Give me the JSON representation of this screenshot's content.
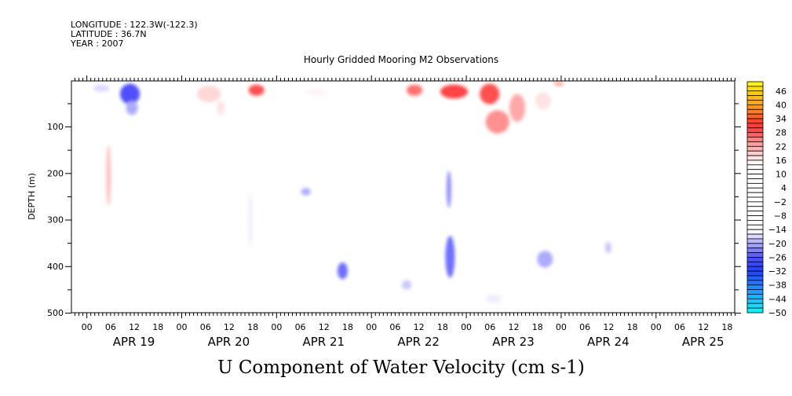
{
  "header": {
    "longitude": "LONGITUDE : 122.3W(-122.3)",
    "latitude": "LATITUDE : 36.7N",
    "year": "YEAR : 2007"
  },
  "chart_data": {
    "type": "heatmap",
    "title": "Hourly Gridded Mooring M2 Observations",
    "xlabel": "U Component of Water Velocity (cm s-1)",
    "ylabel": "DEPTH (m)",
    "x_units": "hours since APR 19 00:00",
    "xlim": [
      -3.8,
      164
    ],
    "ylim": [
      2,
      500
    ],
    "y_inverted": true,
    "yticks": [
      100,
      200,
      300,
      400,
      500
    ],
    "yticks_labeled": [
      "100",
      "200",
      "300",
      "400",
      "500"
    ],
    "xtick_hour_labels": [
      "00",
      "06",
      "12",
      "18"
    ],
    "day_labels": [
      "APR 19",
      "APR 20",
      "APR 21",
      "APR 22",
      "APR 23",
      "APR 24",
      "APR 25"
    ],
    "colorbar": {
      "min": -50,
      "max": 50,
      "step": 2,
      "labels": [
        "46",
        "40",
        "34",
        "28",
        "22",
        "16",
        "10",
        "4",
        "-2",
        "-8",
        "-14",
        "-20",
        "-26",
        "-32",
        "-38",
        "-44",
        "-50"
      ],
      "stops": [
        [
          -50,
          "#00ffff"
        ],
        [
          -44,
          "#10c0ff"
        ],
        [
          -38,
          "#2080ff"
        ],
        [
          -32,
          "#2040ff"
        ],
        [
          -26,
          "#5050ff"
        ],
        [
          -22,
          "#9090ff"
        ],
        [
          -18,
          "#c8c8ff"
        ],
        [
          -16,
          "#eeeeff"
        ],
        [
          -14,
          "#ffffff"
        ],
        [
          14,
          "#ffffff"
        ],
        [
          16,
          "#ffeeee"
        ],
        [
          20,
          "#ffc0c0"
        ],
        [
          24,
          "#ff9090"
        ],
        [
          28,
          "#ff5050"
        ],
        [
          32,
          "#ff3535"
        ],
        [
          36,
          "#ff7020"
        ],
        [
          40,
          "#ffa020"
        ],
        [
          44,
          "#ffc010"
        ],
        [
          50,
          "#ffff00"
        ]
      ]
    },
    "patches": [
      {
        "t": 3.8,
        "depth": 18,
        "dt": 2,
        "dd": 8,
        "value": -17
      },
      {
        "t": 11,
        "depth": 30,
        "dt": 2.5,
        "dd": 22,
        "value": -26
      },
      {
        "t": 11.5,
        "depth": 60,
        "dt": 1.5,
        "dd": 15,
        "value": -20
      },
      {
        "t": 5.6,
        "depth": 205,
        "dt": 0.6,
        "dd": 65,
        "value": 20
      },
      {
        "t": 31,
        "depth": 30,
        "dt": 3,
        "dd": 18,
        "value": 18
      },
      {
        "t": 34,
        "depth": 60,
        "dt": 1,
        "dd": 15,
        "value": 17
      },
      {
        "t": 43,
        "depth": 22,
        "dt": 2,
        "dd": 12,
        "value": 28
      },
      {
        "t": 58,
        "depth": 26,
        "dt": 3,
        "dd": 4,
        "value": 16
      },
      {
        "t": 41.5,
        "depth": 300,
        "dt": 0.5,
        "dd": 60,
        "value": -16
      },
      {
        "t": 55.5,
        "depth": 240,
        "dt": 1.2,
        "dd": 8,
        "value": -20
      },
      {
        "t": 64.8,
        "depth": 410,
        "dt": 1.3,
        "dd": 18,
        "value": -24
      },
      {
        "t": 83,
        "depth": 22,
        "dt": 2,
        "dd": 12,
        "value": 26
      },
      {
        "t": 93,
        "depth": 25,
        "dt": 3.5,
        "dd": 15,
        "value": 30
      },
      {
        "t": 102,
        "depth": 30,
        "dt": 2.5,
        "dd": 22,
        "value": 28
      },
      {
        "t": 104,
        "depth": 90,
        "dt": 3,
        "dd": 25,
        "value": 24
      },
      {
        "t": 109,
        "depth": 60,
        "dt": 2,
        "dd": 30,
        "value": 22
      },
      {
        "t": 115.5,
        "depth": 45,
        "dt": 2,
        "dd": 18,
        "value": 17
      },
      {
        "t": 119.5,
        "depth": 8,
        "dt": 1.3,
        "dd": 5,
        "value": 22
      },
      {
        "t": 91.7,
        "depth": 235,
        "dt": 0.6,
        "dd": 40,
        "value": -22
      },
      {
        "t": 92,
        "depth": 380,
        "dt": 1.2,
        "dd": 45,
        "value": -24
      },
      {
        "t": 81,
        "depth": 440,
        "dt": 1.2,
        "dd": 10,
        "value": -18
      },
      {
        "t": 103,
        "depth": 470,
        "dt": 2,
        "dd": 10,
        "value": -16
      },
      {
        "t": 116,
        "depth": 385,
        "dt": 2,
        "dd": 18,
        "value": -20
      },
      {
        "t": 132,
        "depth": 360,
        "dt": 0.8,
        "dd": 12,
        "value": -18
      }
    ]
  }
}
